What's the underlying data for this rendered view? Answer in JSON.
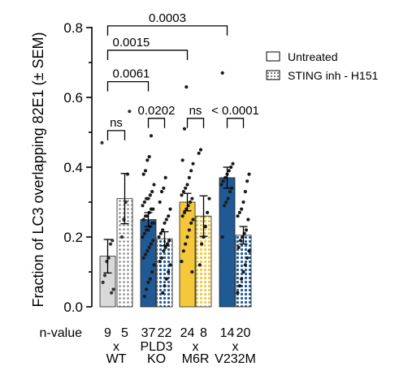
{
  "chart_data": {
    "type": "bar",
    "ylabel": "Fraction of LC3 overlapping 82E1 (± SEM)",
    "ylim": [
      0,
      0.8
    ],
    "yticks": [
      "0.0",
      "0.2",
      "0.4",
      "0.6",
      "0.8"
    ],
    "grid": false,
    "legend_position": "top-right",
    "legend": [
      {
        "name": "Untreated",
        "pattern": "solid"
      },
      {
        "name": "STING inh - H151",
        "pattern": "dotted"
      }
    ],
    "n_label": "n-value",
    "groups": [
      {
        "label_lines": [
          "x",
          "WT"
        ]
      },
      {
        "label_lines": [
          "PLD3",
          "KO"
        ]
      },
      {
        "label_lines": [
          "x",
          "M6R"
        ]
      },
      {
        "label_lines": [
          "x",
          "V232M"
        ]
      }
    ],
    "bars": [
      {
        "group": 0,
        "condition": "Untreated",
        "color": "#d9d9d9",
        "dot_fill": "#333333",
        "value": 0.145,
        "sem": 0.048,
        "n": "9",
        "points": [
          0.47,
          0.19,
          0.18,
          0.14,
          0.13,
          0.09,
          0.07,
          0.05,
          0.04
        ]
      },
      {
        "group": 0,
        "condition": "STING inh - H151",
        "color": "#d9d9d9",
        "dot_fill": "#333333",
        "value": 0.31,
        "sem": 0.072,
        "n": "5",
        "points": [
          0.56,
          0.38,
          0.3,
          0.25,
          0.2
        ]
      },
      {
        "group": 1,
        "condition": "Untreated",
        "color": "#1f5a95",
        "dot_fill": "#1a1a1a",
        "value": 0.25,
        "sem": 0.02,
        "n": "37",
        "points": [
          0.49,
          0.43,
          0.42,
          0.39,
          0.38,
          0.35,
          0.33,
          0.32,
          0.31,
          0.31,
          0.3,
          0.29,
          0.28,
          0.28,
          0.27,
          0.26,
          0.26,
          0.25,
          0.24,
          0.24,
          0.23,
          0.22,
          0.22,
          0.21,
          0.2,
          0.19,
          0.18,
          0.17,
          0.16,
          0.15,
          0.14,
          0.12,
          0.1,
          0.08,
          0.07,
          0.05,
          0.03
        ]
      },
      {
        "group": 1,
        "condition": "STING inh - H151",
        "color": "#1f5a95",
        "dot_fill": "#1a1a1a",
        "value": 0.195,
        "sem": 0.02,
        "n": "22",
        "points": [
          0.37,
          0.34,
          0.33,
          0.3,
          0.28,
          0.26,
          0.25,
          0.24,
          0.22,
          0.21,
          0.2,
          0.19,
          0.18,
          0.17,
          0.16,
          0.14,
          0.13,
          0.12,
          0.1,
          0.08,
          0.06,
          0.04
        ]
      },
      {
        "group": 2,
        "condition": "Untreated",
        "color": "#f5c83c",
        "dot_fill": "#1a1a1a",
        "value": 0.3,
        "sem": 0.025,
        "n": "24",
        "points": [
          0.63,
          0.51,
          0.42,
          0.41,
          0.39,
          0.37,
          0.35,
          0.34,
          0.33,
          0.32,
          0.31,
          0.3,
          0.29,
          0.28,
          0.27,
          0.26,
          0.25,
          0.24,
          0.22,
          0.2,
          0.18,
          0.16,
          0.13,
          0.1
        ]
      },
      {
        "group": 2,
        "condition": "STING inh - H151",
        "color": "#f5c83c",
        "dot_fill": "#1a1a1a",
        "value": 0.26,
        "sem": 0.058,
        "n": "8",
        "points": [
          0.45,
          0.44,
          0.31,
          0.27,
          0.23,
          0.2,
          0.18,
          0.12
        ]
      },
      {
        "group": 3,
        "condition": "Untreated",
        "color": "#1f5a95",
        "dot_fill": "#1a1a1a",
        "value": 0.37,
        "sem": 0.03,
        "n": "14",
        "points": [
          0.67,
          0.41,
          0.4,
          0.39,
          0.38,
          0.37,
          0.36,
          0.35,
          0.34,
          0.33,
          0.31,
          0.3,
          0.29,
          0.2
        ]
      },
      {
        "group": 3,
        "condition": "STING inh - H151",
        "color": "#1f5a95",
        "dot_fill": "#1a1a1a",
        "value": 0.205,
        "sem": 0.025,
        "n": "20",
        "points": [
          0.38,
          0.36,
          0.33,
          0.3,
          0.28,
          0.27,
          0.26,
          0.25,
          0.22,
          0.21,
          0.2,
          0.19,
          0.17,
          0.16,
          0.14,
          0.12,
          0.1,
          0.08,
          0.06,
          0.04
        ]
      }
    ],
    "annotations": [
      {
        "from_bar": 0,
        "to_bar": 1,
        "y": 0.505,
        "label": "ns"
      },
      {
        "from_bar": 2,
        "to_bar": 3,
        "y": 0.54,
        "label": "0.0202"
      },
      {
        "from_bar": 4,
        "to_bar": 5,
        "y": 0.54,
        "label": "ns"
      },
      {
        "from_bar": 6,
        "to_bar": 7,
        "y": 0.54,
        "label": "< 0.0001"
      },
      {
        "from_bar": 0,
        "to_bar": 2,
        "y": 0.645,
        "label": "0.0061"
      },
      {
        "from_bar": 0,
        "to_bar": 4,
        "y": 0.735,
        "label": "0.0015"
      },
      {
        "from_bar": 0,
        "to_bar": 6,
        "y": 0.805,
        "label": "0.0003"
      }
    ]
  }
}
